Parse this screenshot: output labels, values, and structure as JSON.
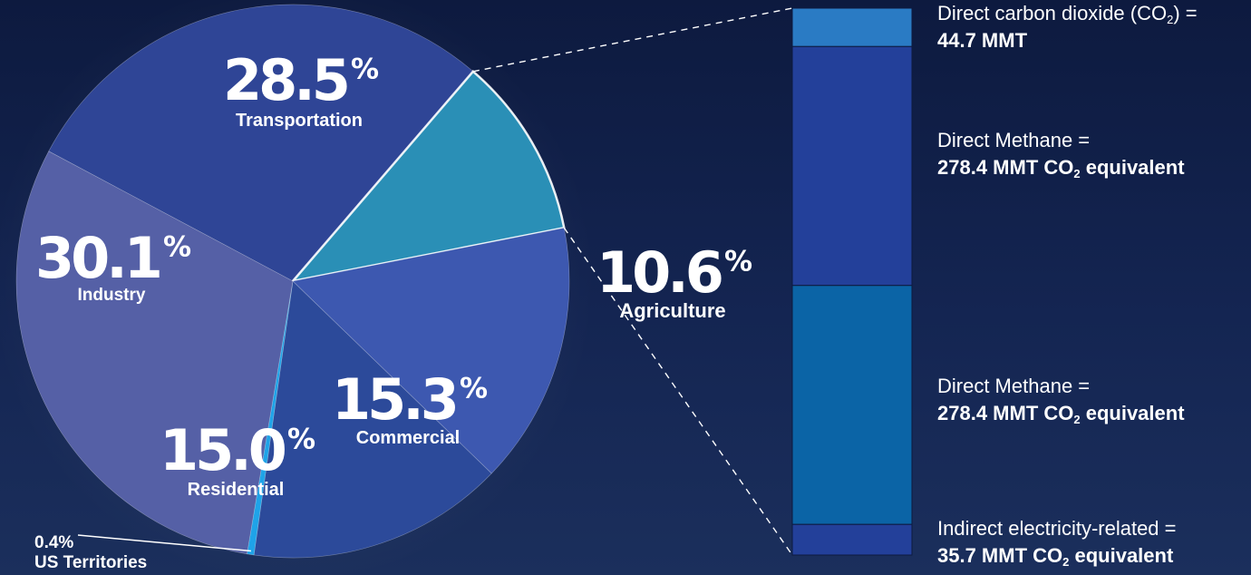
{
  "chart_data": [
    {
      "type": "pie",
      "unit": "%",
      "slices": [
        {
          "label": "Transportation",
          "value": 28.5,
          "color": "#2f4596"
        },
        {
          "label": "Agriculture",
          "value": 10.6,
          "color": "#2a8fb6"
        },
        {
          "label": "Commercial",
          "value": 15.3,
          "color": "#3d58b0"
        },
        {
          "label": "Residential",
          "value": 15.0,
          "color": "#2c4a9a"
        },
        {
          "label": "US Territories",
          "value": 0.4,
          "color": "#1fa3e8"
        },
        {
          "label": "Industry",
          "value": 30.1,
          "color": "#5560a6"
        }
      ]
    },
    {
      "type": "bar",
      "stacked": true,
      "unit": "MMT CO2 equivalent",
      "segments": [
        {
          "label_parts": [
            "Direct carbon dioxide (CO",
            "2",
            ") ="
          ],
          "value_parts": [
            "44.7 MMT"
          ],
          "value": 44.7,
          "color": "#2a7bc4"
        },
        {
          "label_parts": [
            "Direct Methane ="
          ],
          "value_parts": [
            "278.4 MMT CO",
            "2",
            " equivalent"
          ],
          "value": 278.4,
          "color": "#23409a"
        },
        {
          "label_parts": [
            "Direct Methane ="
          ],
          "value_parts": [
            "278.4 MMT CO",
            "2",
            " equivalent"
          ],
          "value": 278.4,
          "color": "#0b64a6"
        },
        {
          "label_parts": [
            "Indirect electricity-related ="
          ],
          "value_parts": [
            "35.7 MMT CO",
            "2",
            " equivalent"
          ],
          "value": 35.7,
          "color": "#23409a"
        }
      ]
    }
  ]
}
